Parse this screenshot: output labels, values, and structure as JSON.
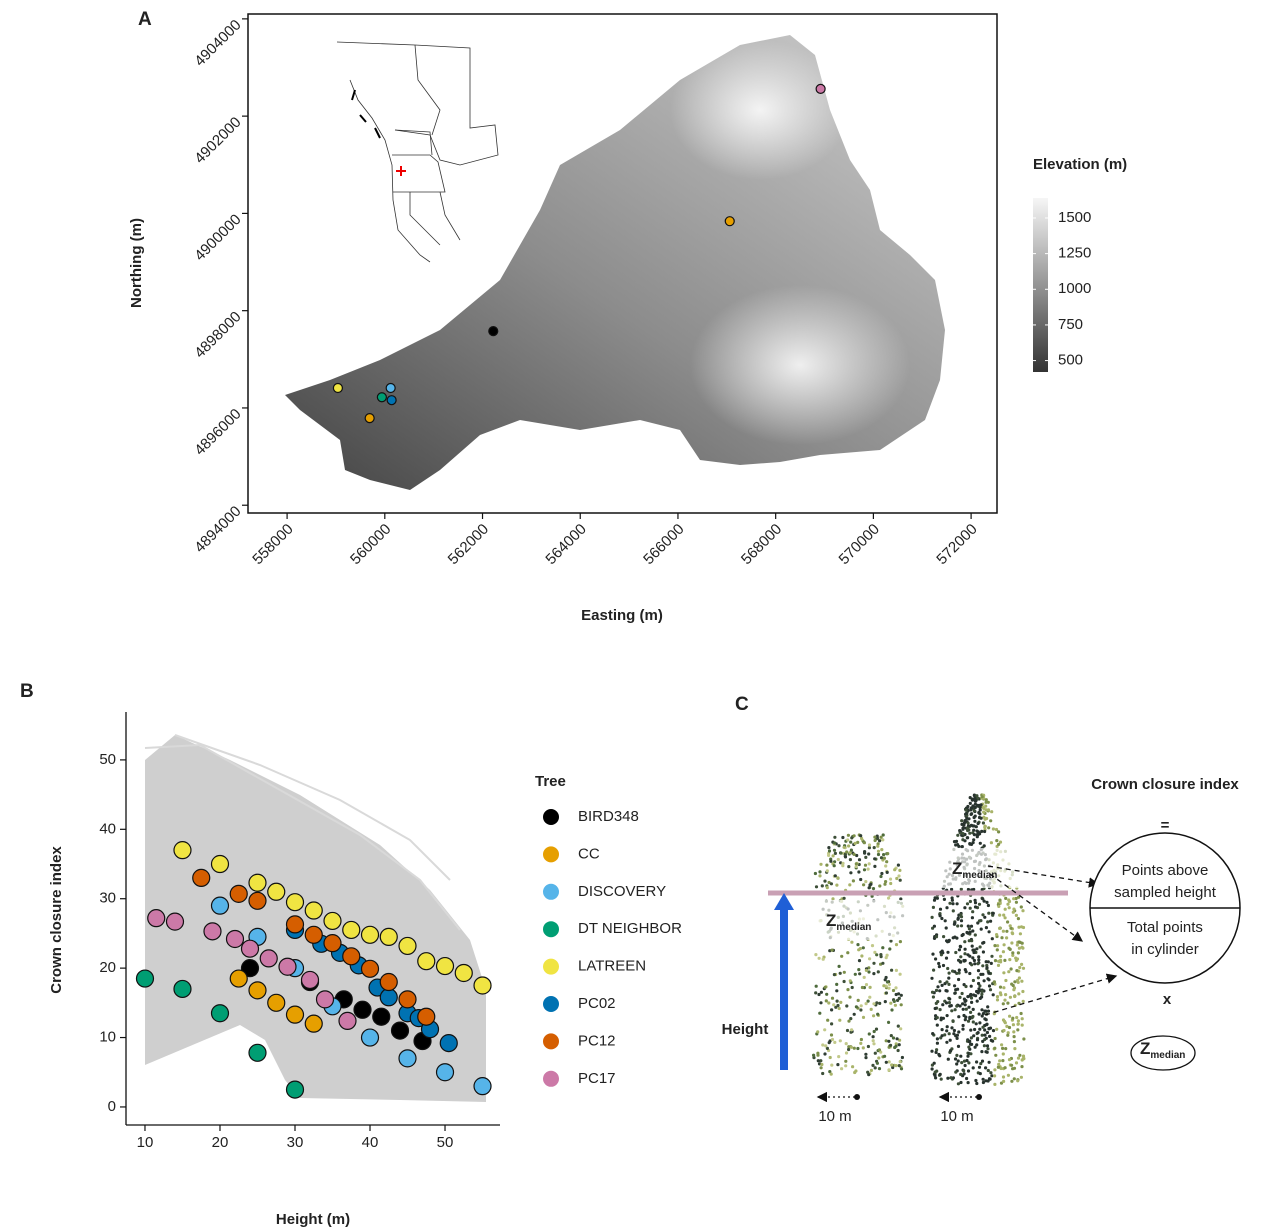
{
  "chart_data": [
    {
      "type": "scatter",
      "label": "A",
      "xlabel": "Easting (m)",
      "ylabel": "Northing (m)",
      "x": [
        568920,
        567060,
        562220,
        559040,
        560120,
        559940,
        560140,
        559690
      ],
      "y": [
        4902560,
        4899840,
        4897580,
        4896410,
        4896410,
        4896220,
        4896160,
        4895790
      ],
      "colors": [
        "#CC79A7",
        "#E69F00",
        "#000000",
        "#F0E442",
        "#56B4E9",
        "#009E73",
        "#0072B2",
        "#E69F00"
      ],
      "xlim": [
        557200,
        572530
      ],
      "ylim": [
        4893840,
        4904100
      ],
      "xticks": [
        558000,
        560000,
        562000,
        564000,
        566000,
        568000,
        570000,
        572000
      ],
      "yticks": [
        4894000,
        4896000,
        4898000,
        4900000,
        4902000,
        4904000
      ],
      "colorbar": {
        "title": "Elevation (m)",
        "lim": [
          420,
          1640
        ],
        "ticks": [
          500,
          750,
          1000,
          1250,
          1500
        ],
        "colors": [
          "#333333",
          "#f6f6f6"
        ]
      }
    },
    {
      "type": "scatter",
      "label": "B",
      "xlabel": "Height (m)",
      "ylabel": "Crown closure index",
      "legend_title": "Tree",
      "xlim": [
        7.47,
        57.33
      ],
      "ylim": [
        -2.6,
        56.9
      ],
      "xticks": [
        10,
        20,
        30,
        40,
        50
      ],
      "yticks": [
        0,
        10,
        20,
        30,
        40,
        50
      ],
      "series": [
        {
          "name": "BIRD348",
          "color": "#000000",
          "x": [
            24,
            32,
            36.5,
            39,
            41.5,
            44,
            47
          ],
          "y": [
            20,
            18,
            15.5,
            14,
            13,
            11,
            9.5
          ]
        },
        {
          "name": "CC",
          "color": "#E69F00",
          "x": [
            22.5,
            25,
            27.5,
            30,
            32.5
          ],
          "y": [
            18.5,
            16.8,
            15,
            13.3,
            12
          ]
        },
        {
          "name": "DISCOVERY",
          "color": "#56B4E9",
          "x": [
            20,
            25,
            30,
            35,
            40,
            45,
            50,
            55
          ],
          "y": [
            29,
            24.5,
            20,
            14.5,
            10,
            7,
            5,
            3
          ]
        },
        {
          "name": "DT NEIGHBOR",
          "color": "#009E73",
          "x": [
            10,
            15,
            20,
            25,
            30
          ],
          "y": [
            18.5,
            17,
            13.5,
            7.8,
            2.5
          ]
        },
        {
          "name": "LATREEN",
          "color": "#F0E442",
          "x": [
            15,
            20,
            25,
            27.5,
            30,
            32.5,
            35,
            37.5,
            40,
            42.5,
            45,
            47.5,
            50,
            52.5,
            55
          ],
          "y": [
            37,
            35,
            32.3,
            31,
            29.5,
            28.3,
            26.8,
            25.5,
            24.8,
            24.5,
            23.2,
            21,
            20.3,
            19.3,
            17.5
          ]
        },
        {
          "name": "PC02",
          "color": "#0072B2",
          "x": [
            30,
            33.5,
            36,
            38.5,
            41,
            42.5,
            45,
            46.5,
            48,
            50.5
          ],
          "y": [
            25.5,
            23.5,
            22.2,
            20.4,
            17.2,
            15.8,
            13.5,
            12.8,
            11.2,
            9.2
          ]
        },
        {
          "name": "PC12",
          "color": "#D55E00",
          "x": [
            17.5,
            22.5,
            25,
            30,
            32.5,
            35,
            37.5,
            40,
            42.5,
            45,
            47.5
          ],
          "y": [
            33,
            30.7,
            29.7,
            26.3,
            24.8,
            23.6,
            21.7,
            19.9,
            18,
            15.5,
            13
          ]
        },
        {
          "name": "PC17",
          "color": "#CC79A7",
          "x": [
            11.5,
            14,
            19,
            22,
            24,
            26.5,
            29,
            32,
            34,
            37
          ],
          "y": [
            27.2,
            26.7,
            25.3,
            24.2,
            22.8,
            21.4,
            20.2,
            18.3,
            15.5,
            12.4
          ]
        }
      ]
    }
  ],
  "diagram": {
    "label": "C",
    "title": "Crown closure index",
    "equals": "=",
    "numerator": [
      "Points above",
      "sampled height"
    ],
    "denominator": [
      "Total points",
      "in cylinder"
    ],
    "times": "x",
    "z": "Z",
    "z_sub": "median",
    "height_label": "Height",
    "scale_label": "10 m"
  }
}
